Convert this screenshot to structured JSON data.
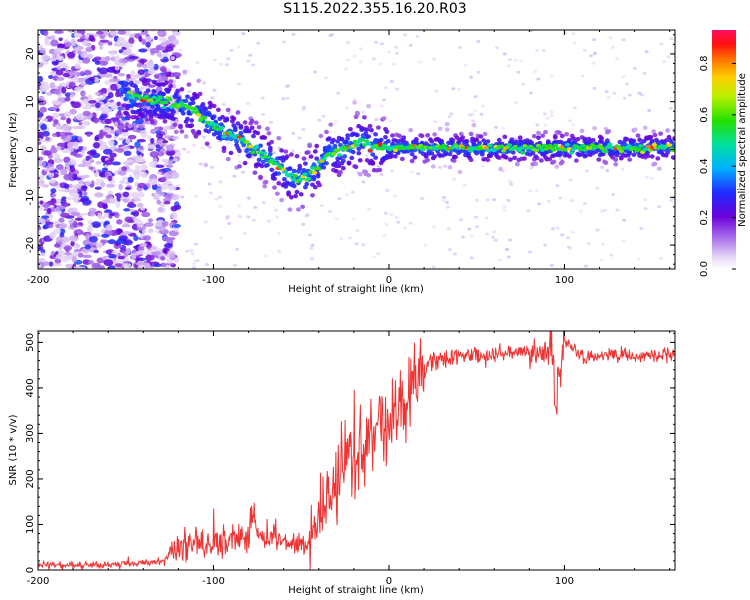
{
  "chart_data": [
    {
      "type": "heatmap",
      "title": "S115.2022.355.16.20.R03",
      "xlabel": "Height of straight line (km)",
      "ylabel": "Frequency (Hz)",
      "xlim": [
        -200,
        163
      ],
      "ylim": [
        -25,
        25
      ],
      "xticks": [
        -200,
        -100,
        0,
        100
      ],
      "yticks": [
        20,
        10,
        0,
        -10,
        -20
      ],
      "colorbar": {
        "label": "Normalized spectral amplitude",
        "range": [
          0,
          0.93
        ],
        "ticks": [
          0.0,
          0.2,
          0.4,
          0.6,
          0.8
        ]
      },
      "ridge": {
        "x": [
          -145,
          -130,
          -115,
          -100,
          -85,
          -75,
          -65,
          -55,
          -48,
          -42,
          -35,
          -25,
          -20,
          -15,
          -10,
          0,
          20,
          60,
          100,
          163
        ],
        "y": [
          11,
          10,
          9,
          5,
          2,
          0,
          -3,
          -6,
          -6,
          -4,
          -1,
          0.2,
          1,
          2,
          0.5,
          0.5,
          0.3,
          0.2,
          0.3,
          0.5
        ]
      }
    },
    {
      "type": "line",
      "xlabel": "Height of straight line (km)",
      "ylabel": "SNR (10 * v/v)",
      "xlim": [
        -200,
        163
      ],
      "ylim": [
        0,
        525
      ],
      "xticks": [
        -200,
        -100,
        0,
        100
      ],
      "yticks": [
        0,
        100,
        200,
        300,
        400,
        500
      ],
      "color": "#ee3333",
      "series": [
        {
          "x": [
            -200,
            -180,
            -160,
            -140,
            -128,
            -122,
            -118,
            -110,
            -100,
            -90,
            -80,
            -78,
            -75,
            -70,
            -60,
            -50,
            -45,
            -40,
            -35,
            -30,
            -25,
            -20,
            -15,
            -10,
            -5,
            0,
            5,
            10,
            15,
            20,
            25,
            30,
            40,
            50,
            60,
            70,
            80,
            88,
            92,
            95,
            97,
            100,
            105,
            110,
            120,
            140,
            163
          ],
          "y": [
            12,
            10,
            12,
            15,
            20,
            40,
            50,
            60,
            65,
            65,
            70,
            110,
            80,
            70,
            65,
            60,
            60,
            100,
            160,
            210,
            230,
            240,
            250,
            300,
            320,
            300,
            360,
            380,
            410,
            440,
            460,
            460,
            470,
            470,
            475,
            475,
            480,
            470,
            480,
            470,
            420,
            500,
            490,
            470,
            472,
            470,
            470
          ]
        }
      ]
    }
  ]
}
